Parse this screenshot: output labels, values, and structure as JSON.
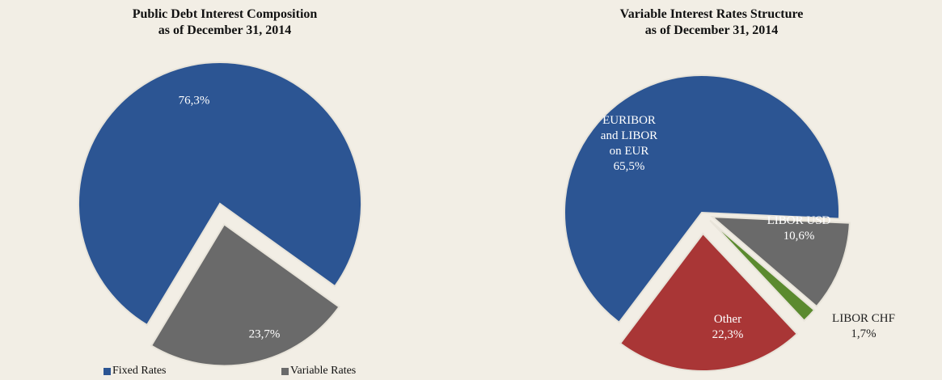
{
  "chart_data": [
    {
      "type": "pie",
      "title": "Public Debt Interest Composition",
      "subtitle": "as of December 31, 2014",
      "categories": [
        "Fixed Rates",
        "Variable Rates"
      ],
      "values": [
        76.3,
        23.7
      ],
      "value_labels": [
        "76,3%",
        "23,7%"
      ],
      "colors": [
        "#2c5593",
        "#6a6a6a"
      ],
      "legend": "bottom"
    },
    {
      "type": "pie",
      "title": "Variable Interest Rates Structure",
      "subtitle": "as of December 31, 2014",
      "categories": [
        "EURIBOR and LIBOR on EUR",
        "LIBOR USD",
        "LIBOR CHF",
        "Other"
      ],
      "values": [
        65.5,
        10.6,
        1.7,
        22.3
      ],
      "value_labels": [
        "65,5%",
        "10,6%",
        "1,7%",
        "22,3%"
      ],
      "colors": [
        "#2c5593",
        "#6a6a6a",
        "#5b8a2f",
        "#a93636"
      ]
    }
  ]
}
